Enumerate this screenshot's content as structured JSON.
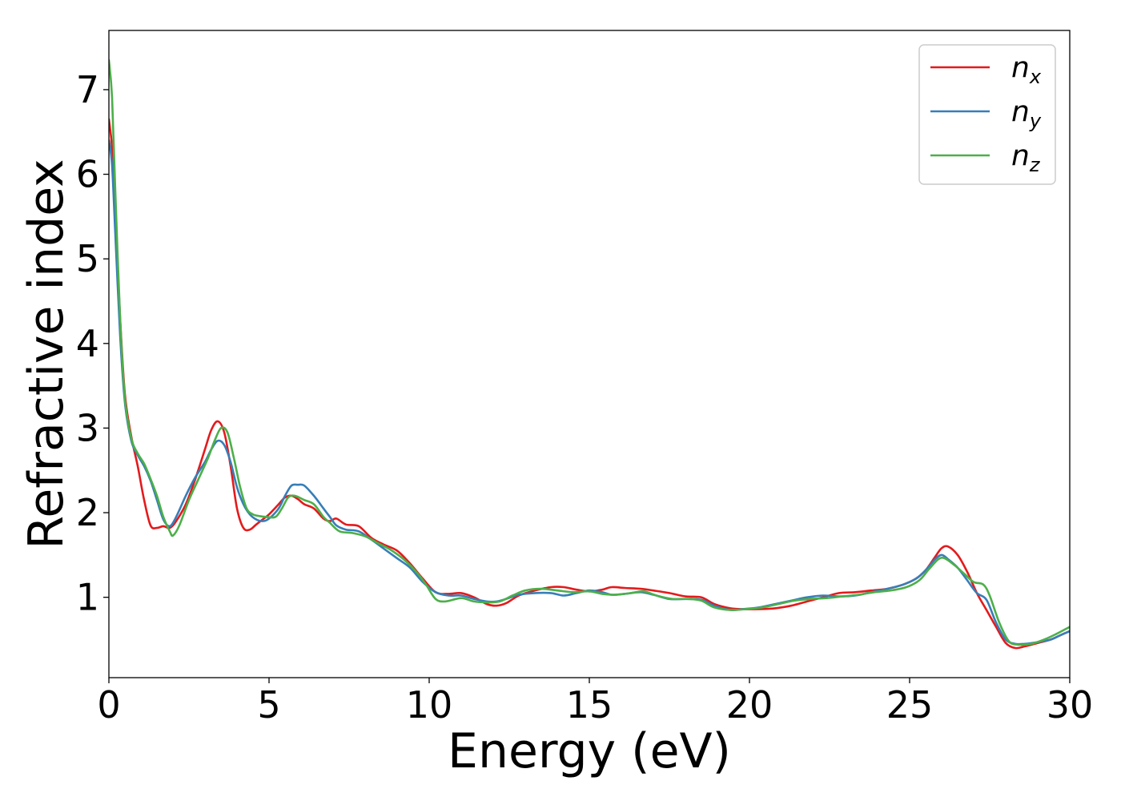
{
  "chart_data": {
    "type": "line",
    "xlabel": "Energy (eV)",
    "ylabel": "Refractive index",
    "xlim": [
      0,
      30
    ],
    "ylim": [
      0.05,
      7.7
    ],
    "xticks": [
      "0",
      "5",
      "10",
      "15",
      "20",
      "25",
      "30"
    ],
    "yticks": [
      "1",
      "2",
      "3",
      "4",
      "5",
      "6",
      "7"
    ],
    "legend_position": "top-right",
    "grid": false,
    "series": [
      {
        "name": "n_x",
        "label_main": "n",
        "label_sub": "x",
        "color": "#e41a1c",
        "points": [
          [
            0,
            6.65
          ],
          [
            0.1,
            6.3
          ],
          [
            0.2,
            5.5
          ],
          [
            0.35,
            4.3
          ],
          [
            0.5,
            3.4
          ],
          [
            0.7,
            2.9
          ],
          [
            0.9,
            2.55
          ],
          [
            1.1,
            2.15
          ],
          [
            1.3,
            1.85
          ],
          [
            1.5,
            1.82
          ],
          [
            1.7,
            1.84
          ],
          [
            1.9,
            1.82
          ],
          [
            2.1,
            1.9
          ],
          [
            2.4,
            2.1
          ],
          [
            2.7,
            2.4
          ],
          [
            3.0,
            2.75
          ],
          [
            3.2,
            2.98
          ],
          [
            3.4,
            3.08
          ],
          [
            3.6,
            2.95
          ],
          [
            3.8,
            2.55
          ],
          [
            4.0,
            2.05
          ],
          [
            4.2,
            1.82
          ],
          [
            4.4,
            1.8
          ],
          [
            4.6,
            1.86
          ],
          [
            4.8,
            1.92
          ],
          [
            5.0,
            1.98
          ],
          [
            5.3,
            2.1
          ],
          [
            5.5,
            2.18
          ],
          [
            5.7,
            2.2
          ],
          [
            5.9,
            2.16
          ],
          [
            6.1,
            2.1
          ],
          [
            6.4,
            2.05
          ],
          [
            6.7,
            1.93
          ],
          [
            6.9,
            1.9
          ],
          [
            7.1,
            1.93
          ],
          [
            7.4,
            1.86
          ],
          [
            7.8,
            1.84
          ],
          [
            8.2,
            1.7
          ],
          [
            8.6,
            1.62
          ],
          [
            9.0,
            1.55
          ],
          [
            9.4,
            1.4
          ],
          [
            9.8,
            1.22
          ],
          [
            10.2,
            1.06
          ],
          [
            10.6,
            1.04
          ],
          [
            11.0,
            1.05
          ],
          [
            11.4,
            1.0
          ],
          [
            11.8,
            0.92
          ],
          [
            12.1,
            0.9
          ],
          [
            12.4,
            0.93
          ],
          [
            12.8,
            1.02
          ],
          [
            13.3,
            1.08
          ],
          [
            13.8,
            1.12
          ],
          [
            14.2,
            1.12
          ],
          [
            14.6,
            1.09
          ],
          [
            15.0,
            1.07
          ],
          [
            15.4,
            1.09
          ],
          [
            15.7,
            1.12
          ],
          [
            16.1,
            1.11
          ],
          [
            16.6,
            1.1
          ],
          [
            17.0,
            1.08
          ],
          [
            17.5,
            1.05
          ],
          [
            18.0,
            1.01
          ],
          [
            18.5,
            1.0
          ],
          [
            18.9,
            0.92
          ],
          [
            19.4,
            0.87
          ],
          [
            19.8,
            0.86
          ],
          [
            20.3,
            0.86
          ],
          [
            20.8,
            0.87
          ],
          [
            21.3,
            0.9
          ],
          [
            21.8,
            0.95
          ],
          [
            22.3,
            1.0
          ],
          [
            22.8,
            1.05
          ],
          [
            23.3,
            1.06
          ],
          [
            23.8,
            1.08
          ],
          [
            24.3,
            1.1
          ],
          [
            24.8,
            1.15
          ],
          [
            25.2,
            1.22
          ],
          [
            25.5,
            1.32
          ],
          [
            25.8,
            1.48
          ],
          [
            26.0,
            1.58
          ],
          [
            26.2,
            1.6
          ],
          [
            26.5,
            1.5
          ],
          [
            26.8,
            1.3
          ],
          [
            27.1,
            1.05
          ],
          [
            27.4,
            0.85
          ],
          [
            27.7,
            0.65
          ],
          [
            28.0,
            0.46
          ],
          [
            28.3,
            0.4
          ],
          [
            28.6,
            0.42
          ],
          [
            29.0,
            0.46
          ],
          [
            29.4,
            0.5
          ],
          [
            29.7,
            0.55
          ],
          [
            30.0,
            0.6
          ]
        ]
      },
      {
        "name": "n_y",
        "label_main": "n",
        "label_sub": "y",
        "color": "#377eb8",
        "points": [
          [
            0,
            6.4
          ],
          [
            0.1,
            6.1
          ],
          [
            0.2,
            5.3
          ],
          [
            0.35,
            4.1
          ],
          [
            0.5,
            3.3
          ],
          [
            0.7,
            2.85
          ],
          [
            0.9,
            2.68
          ],
          [
            1.1,
            2.55
          ],
          [
            1.3,
            2.38
          ],
          [
            1.5,
            2.15
          ],
          [
            1.7,
            1.92
          ],
          [
            1.9,
            1.84
          ],
          [
            2.1,
            1.95
          ],
          [
            2.4,
            2.2
          ],
          [
            2.7,
            2.42
          ],
          [
            3.0,
            2.6
          ],
          [
            3.2,
            2.75
          ],
          [
            3.4,
            2.85
          ],
          [
            3.6,
            2.8
          ],
          [
            3.8,
            2.6
          ],
          [
            4.0,
            2.3
          ],
          [
            4.2,
            2.1
          ],
          [
            4.4,
            1.98
          ],
          [
            4.6,
            1.92
          ],
          [
            4.8,
            1.9
          ],
          [
            5.0,
            1.93
          ],
          [
            5.3,
            2.05
          ],
          [
            5.5,
            2.2
          ],
          [
            5.7,
            2.32
          ],
          [
            5.9,
            2.33
          ],
          [
            6.1,
            2.32
          ],
          [
            6.4,
            2.2
          ],
          [
            6.7,
            2.05
          ],
          [
            6.9,
            1.95
          ],
          [
            7.1,
            1.85
          ],
          [
            7.4,
            1.8
          ],
          [
            7.8,
            1.78
          ],
          [
            8.2,
            1.68
          ],
          [
            8.6,
            1.57
          ],
          [
            9.0,
            1.46
          ],
          [
            9.4,
            1.35
          ],
          [
            9.8,
            1.18
          ],
          [
            10.2,
            1.06
          ],
          [
            10.6,
            1.02
          ],
          [
            11.0,
            1.02
          ],
          [
            11.4,
            0.98
          ],
          [
            11.8,
            0.95
          ],
          [
            12.1,
            0.95
          ],
          [
            12.4,
            0.98
          ],
          [
            12.8,
            1.03
          ],
          [
            13.3,
            1.05
          ],
          [
            13.8,
            1.05
          ],
          [
            14.2,
            1.02
          ],
          [
            14.6,
            1.05
          ],
          [
            15.0,
            1.08
          ],
          [
            15.4,
            1.06
          ],
          [
            15.7,
            1.03
          ],
          [
            16.1,
            1.04
          ],
          [
            16.6,
            1.06
          ],
          [
            17.0,
            1.03
          ],
          [
            17.5,
            0.98
          ],
          [
            18.0,
            0.98
          ],
          [
            18.5,
            0.97
          ],
          [
            18.9,
            0.9
          ],
          [
            19.4,
            0.85
          ],
          [
            19.8,
            0.86
          ],
          [
            20.3,
            0.88
          ],
          [
            20.8,
            0.92
          ],
          [
            21.3,
            0.96
          ],
          [
            21.8,
            1.0
          ],
          [
            22.3,
            1.02
          ],
          [
            22.8,
            1.01
          ],
          [
            23.3,
            1.02
          ],
          [
            23.8,
            1.06
          ],
          [
            24.3,
            1.1
          ],
          [
            24.8,
            1.15
          ],
          [
            25.2,
            1.22
          ],
          [
            25.5,
            1.32
          ],
          [
            25.8,
            1.45
          ],
          [
            26.0,
            1.5
          ],
          [
            26.2,
            1.45
          ],
          [
            26.5,
            1.35
          ],
          [
            26.8,
            1.2
          ],
          [
            27.1,
            1.05
          ],
          [
            27.4,
            0.97
          ],
          [
            27.7,
            0.7
          ],
          [
            28.0,
            0.5
          ],
          [
            28.3,
            0.45
          ],
          [
            28.6,
            0.45
          ],
          [
            29.0,
            0.47
          ],
          [
            29.4,
            0.5
          ],
          [
            29.7,
            0.55
          ],
          [
            30.0,
            0.6
          ]
        ]
      },
      {
        "name": "n_z",
        "label_main": "n",
        "label_sub": "z",
        "color": "#4daf4a",
        "points": [
          [
            0,
            7.35
          ],
          [
            0.1,
            6.9
          ],
          [
            0.2,
            5.8
          ],
          [
            0.35,
            4.3
          ],
          [
            0.5,
            3.35
          ],
          [
            0.7,
            2.88
          ],
          [
            0.9,
            2.7
          ],
          [
            1.1,
            2.58
          ],
          [
            1.3,
            2.4
          ],
          [
            1.5,
            2.2
          ],
          [
            1.7,
            1.95
          ],
          [
            1.9,
            1.78
          ],
          [
            2.0,
            1.73
          ],
          [
            2.2,
            1.85
          ],
          [
            2.5,
            2.15
          ],
          [
            2.8,
            2.4
          ],
          [
            3.1,
            2.65
          ],
          [
            3.3,
            2.85
          ],
          [
            3.5,
            3.0
          ],
          [
            3.7,
            2.95
          ],
          [
            3.9,
            2.65
          ],
          [
            4.1,
            2.3
          ],
          [
            4.3,
            2.05
          ],
          [
            4.5,
            1.98
          ],
          [
            4.7,
            1.96
          ],
          [
            4.9,
            1.95
          ],
          [
            5.2,
            1.95
          ],
          [
            5.4,
            2.05
          ],
          [
            5.6,
            2.18
          ],
          [
            5.8,
            2.2
          ],
          [
            6.1,
            2.15
          ],
          [
            6.4,
            2.1
          ],
          [
            6.7,
            1.95
          ],
          [
            6.9,
            1.88
          ],
          [
            7.2,
            1.78
          ],
          [
            7.6,
            1.76
          ],
          [
            8.0,
            1.72
          ],
          [
            8.4,
            1.64
          ],
          [
            8.8,
            1.56
          ],
          [
            9.2,
            1.45
          ],
          [
            9.6,
            1.3
          ],
          [
            9.9,
            1.15
          ],
          [
            10.2,
            0.98
          ],
          [
            10.5,
            0.95
          ],
          [
            11.0,
            0.99
          ],
          [
            11.4,
            0.95
          ],
          [
            11.8,
            0.94
          ],
          [
            12.2,
            0.95
          ],
          [
            12.6,
            1.02
          ],
          [
            13.0,
            1.08
          ],
          [
            13.5,
            1.1
          ],
          [
            14.0,
            1.08
          ],
          [
            14.5,
            1.06
          ],
          [
            15.0,
            1.07
          ],
          [
            15.4,
            1.04
          ],
          [
            15.8,
            1.03
          ],
          [
            16.3,
            1.05
          ],
          [
            16.7,
            1.07
          ],
          [
            17.1,
            1.02
          ],
          [
            17.6,
            0.98
          ],
          [
            18.1,
            0.98
          ],
          [
            18.5,
            0.96
          ],
          [
            18.9,
            0.88
          ],
          [
            19.4,
            0.85
          ],
          [
            19.9,
            0.86
          ],
          [
            20.4,
            0.88
          ],
          [
            20.9,
            0.92
          ],
          [
            21.4,
            0.96
          ],
          [
            21.9,
            0.98
          ],
          [
            22.4,
            0.99
          ],
          [
            22.9,
            1.01
          ],
          [
            23.4,
            1.03
          ],
          [
            23.9,
            1.06
          ],
          [
            24.4,
            1.08
          ],
          [
            24.9,
            1.12
          ],
          [
            25.3,
            1.2
          ],
          [
            25.6,
            1.33
          ],
          [
            25.9,
            1.45
          ],
          [
            26.1,
            1.46
          ],
          [
            26.4,
            1.38
          ],
          [
            26.7,
            1.28
          ],
          [
            27.0,
            1.18
          ],
          [
            27.3,
            1.15
          ],
          [
            27.5,
            1.02
          ],
          [
            27.8,
            0.7
          ],
          [
            28.1,
            0.48
          ],
          [
            28.4,
            0.44
          ],
          [
            28.8,
            0.45
          ],
          [
            29.2,
            0.5
          ],
          [
            29.6,
            0.57
          ],
          [
            30.0,
            0.65
          ]
        ]
      }
    ]
  }
}
